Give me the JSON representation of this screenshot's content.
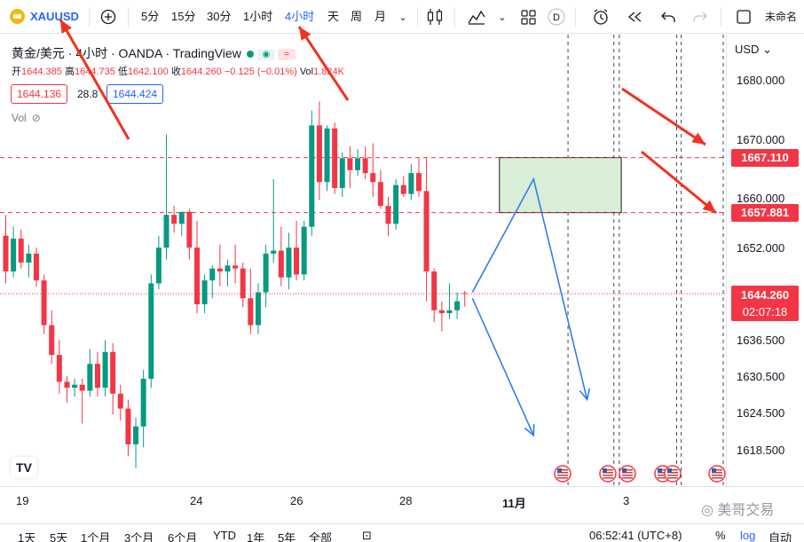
{
  "toolbar": {
    "symbol": "XAUUSD",
    "intervals": [
      "5分",
      "15分",
      "30分",
      "1小时",
      "4小时",
      "天",
      "周",
      "月"
    ],
    "active_interval": "4小时",
    "right_label": "未命名"
  },
  "legend": {
    "title": "黄金/美元 · 4小时 · OANDA · TradingView",
    "open_label": "开",
    "open": "1644.385",
    "high_label": "高",
    "high": "1644.735",
    "low_label": "低",
    "low": "1642.100",
    "close_label": "收",
    "close": "1644.260",
    "change": "−0.125 (−0.01%)",
    "vol_label": "Vol",
    "vol": "1.824K",
    "bid": "1644.136",
    "spread": "28.8",
    "ask": "1644.424",
    "volume_indicator": "Vol",
    "logo_text": "TV"
  },
  "price_axis": {
    "currency": "USD",
    "ticks": [
      "1680.000",
      "1670.000",
      "1660.000",
      "1652.000",
      "1636.500",
      "1630.500",
      "1624.500",
      "1618.500"
    ],
    "upper_level": "1667.110",
    "lower_level": "1657.881",
    "last_price": "1644.260",
    "countdown": "02:07:18"
  },
  "time_axis": {
    "ticks": [
      "19",
      "24",
      "26",
      "28",
      "11月",
      "3"
    ]
  },
  "watermark": "美哥交易",
  "bottom_bar": {
    "ranges": [
      "1天",
      "5天",
      "1个月",
      "3个月",
      "6个月",
      "YTD",
      "1年",
      "5年",
      "全部"
    ],
    "time": "06:52:41 (UTC+8)",
    "percent": "%",
    "log": "log",
    "auto": "自动"
  },
  "colors": {
    "up": "#089981",
    "down": "#f23645",
    "annotation_arrow_red": "#f0321e",
    "drawing_blue": "#2f7fef",
    "zone_fill": "#d8eed6",
    "accent": "#2962ff"
  },
  "chart_data": {
    "type": "candlestick",
    "symbol": "XAUUSD",
    "interval": "4小时",
    "x_labels": [
      "19",
      "24",
      "26",
      "28",
      "11月",
      "3"
    ],
    "ylim": [
      1614,
      1685
    ],
    "candles": [
      {
        "o": 1654.0,
        "h": 1657.5,
        "l": 1646.0,
        "c": 1648.0
      },
      {
        "o": 1648.0,
        "h": 1655.5,
        "l": 1647.0,
        "c": 1653.5
      },
      {
        "o": 1653.5,
        "h": 1655.0,
        "l": 1648.5,
        "c": 1649.5
      },
      {
        "o": 1649.5,
        "h": 1652.5,
        "l": 1647.0,
        "c": 1651.0
      },
      {
        "o": 1651.0,
        "h": 1652.0,
        "l": 1645.5,
        "c": 1646.5
      },
      {
        "o": 1646.5,
        "h": 1647.5,
        "l": 1637.5,
        "c": 1639.0
      },
      {
        "o": 1639.0,
        "h": 1641.5,
        "l": 1632.5,
        "c": 1634.0
      },
      {
        "o": 1634.0,
        "h": 1636.5,
        "l": 1627.5,
        "c": 1629.5
      },
      {
        "o": 1629.5,
        "h": 1630.5,
        "l": 1626.0,
        "c": 1628.5
      },
      {
        "o": 1628.5,
        "h": 1630.0,
        "l": 1627.0,
        "c": 1629.0
      },
      {
        "o": 1629.0,
        "h": 1630.0,
        "l": 1622.5,
        "c": 1628.0
      },
      {
        "o": 1628.0,
        "h": 1635.0,
        "l": 1627.0,
        "c": 1632.5
      },
      {
        "o": 1632.5,
        "h": 1634.5,
        "l": 1627.0,
        "c": 1628.5
      },
      {
        "o": 1628.5,
        "h": 1636.5,
        "l": 1627.0,
        "c": 1634.5
      },
      {
        "o": 1634.5,
        "h": 1636.0,
        "l": 1624.0,
        "c": 1627.5
      },
      {
        "o": 1627.5,
        "h": 1629.0,
        "l": 1623.0,
        "c": 1625.0
      },
      {
        "o": 1625.0,
        "h": 1626.5,
        "l": 1617.0,
        "c": 1619.0
      },
      {
        "o": 1619.0,
        "h": 1623.5,
        "l": 1615.0,
        "c": 1622.0
      },
      {
        "o": 1622.0,
        "h": 1631.5,
        "l": 1618.5,
        "c": 1630.0
      },
      {
        "o": 1630.0,
        "h": 1647.5,
        "l": 1628.5,
        "c": 1646.0
      },
      {
        "o": 1646.0,
        "h": 1654.0,
        "l": 1645.0,
        "c": 1652.0
      },
      {
        "o": 1652.0,
        "h": 1671.0,
        "l": 1650.0,
        "c": 1657.5
      },
      {
        "o": 1657.5,
        "h": 1659.0,
        "l": 1654.5,
        "c": 1656.0
      },
      {
        "o": 1656.0,
        "h": 1658.0,
        "l": 1654.0,
        "c": 1658.0
      },
      {
        "o": 1658.0,
        "h": 1658.5,
        "l": 1650.0,
        "c": 1652.0
      },
      {
        "o": 1652.0,
        "h": 1656.5,
        "l": 1641.0,
        "c": 1642.5
      },
      {
        "o": 1642.5,
        "h": 1647.5,
        "l": 1641.0,
        "c": 1646.5
      },
      {
        "o": 1646.5,
        "h": 1649.0,
        "l": 1643.5,
        "c": 1648.5
      },
      {
        "o": 1648.5,
        "h": 1652.5,
        "l": 1645.5,
        "c": 1648.0
      },
      {
        "o": 1648.0,
        "h": 1650.0,
        "l": 1645.5,
        "c": 1649.0
      },
      {
        "o": 1649.0,
        "h": 1652.5,
        "l": 1646.0,
        "c": 1648.5
      },
      {
        "o": 1648.5,
        "h": 1649.5,
        "l": 1642.0,
        "c": 1643.5
      },
      {
        "o": 1643.5,
        "h": 1648.5,
        "l": 1637.5,
        "c": 1639.0
      },
      {
        "o": 1639.0,
        "h": 1646.0,
        "l": 1637.5,
        "c": 1644.5
      },
      {
        "o": 1644.5,
        "h": 1652.5,
        "l": 1642.0,
        "c": 1651.0
      },
      {
        "o": 1651.0,
        "h": 1663.5,
        "l": 1649.5,
        "c": 1651.5
      },
      {
        "o": 1651.5,
        "h": 1655.5,
        "l": 1645.5,
        "c": 1647.0
      },
      {
        "o": 1647.0,
        "h": 1654.5,
        "l": 1645.0,
        "c": 1652.0
      },
      {
        "o": 1652.0,
        "h": 1656.5,
        "l": 1646.5,
        "c": 1647.5
      },
      {
        "o": 1647.5,
        "h": 1656.5,
        "l": 1646.5,
        "c": 1655.5
      },
      {
        "o": 1655.5,
        "h": 1675.0,
        "l": 1654.0,
        "c": 1672.5
      },
      {
        "o": 1672.5,
        "h": 1676.5,
        "l": 1660.0,
        "c": 1663.0
      },
      {
        "o": 1663.0,
        "h": 1672.5,
        "l": 1661.5,
        "c": 1672.0
      },
      {
        "o": 1672.0,
        "h": 1673.0,
        "l": 1661.0,
        "c": 1662.0
      },
      {
        "o": 1662.0,
        "h": 1668.0,
        "l": 1660.5,
        "c": 1667.0
      },
      {
        "o": 1667.0,
        "h": 1669.0,
        "l": 1662.0,
        "c": 1665.0
      },
      {
        "o": 1665.0,
        "h": 1668.5,
        "l": 1664.0,
        "c": 1667.0
      },
      {
        "o": 1667.0,
        "h": 1669.0,
        "l": 1663.5,
        "c": 1664.5
      },
      {
        "o": 1664.5,
        "h": 1669.5,
        "l": 1660.5,
        "c": 1663.0
      },
      {
        "o": 1663.0,
        "h": 1665.0,
        "l": 1658.5,
        "c": 1659.0
      },
      {
        "o": 1659.0,
        "h": 1660.5,
        "l": 1654.0,
        "c": 1656.0
      },
      {
        "o": 1656.0,
        "h": 1663.5,
        "l": 1655.0,
        "c": 1662.5
      },
      {
        "o": 1662.5,
        "h": 1664.0,
        "l": 1660.5,
        "c": 1661.0
      },
      {
        "o": 1661.0,
        "h": 1666.0,
        "l": 1660.0,
        "c": 1664.5
      },
      {
        "o": 1664.5,
        "h": 1667.0,
        "l": 1660.5,
        "c": 1661.5
      },
      {
        "o": 1661.5,
        "h": 1667.0,
        "l": 1643.0,
        "c": 1648.0
      },
      {
        "o": 1648.0,
        "h": 1648.5,
        "l": 1639.5,
        "c": 1641.5
      },
      {
        "o": 1641.5,
        "h": 1643.0,
        "l": 1638.0,
        "c": 1641.0
      },
      {
        "o": 1641.0,
        "h": 1646.0,
        "l": 1640.0,
        "c": 1641.5
      },
      {
        "o": 1641.5,
        "h": 1644.5,
        "l": 1640.0,
        "c": 1643.0
      },
      {
        "o": 1644.385,
        "h": 1644.735,
        "l": 1642.1,
        "c": 1644.26
      }
    ],
    "levels": [
      {
        "name": "upper_level",
        "value": 1667.11
      },
      {
        "name": "lower_level",
        "value": 1657.881
      },
      {
        "name": "last_price",
        "value": 1644.26
      }
    ],
    "zone": {
      "from_candle": 65,
      "to_candle": 80,
      "low": 1657.881,
      "high": 1667.11
    },
    "scenario_paths": [
      [
        {
          "i": 61,
          "p": 1644.5
        },
        {
          "i": 69,
          "p": 1663.5
        },
        {
          "i": 76,
          "p": 1626.5
        }
      ],
      [
        {
          "i": 61,
          "p": 1643.5
        },
        {
          "i": 69,
          "p": 1620.5
        }
      ]
    ],
    "event_columns": [
      73.5,
      79.5,
      80.2,
      87.7,
      88.3,
      93.8
    ]
  }
}
